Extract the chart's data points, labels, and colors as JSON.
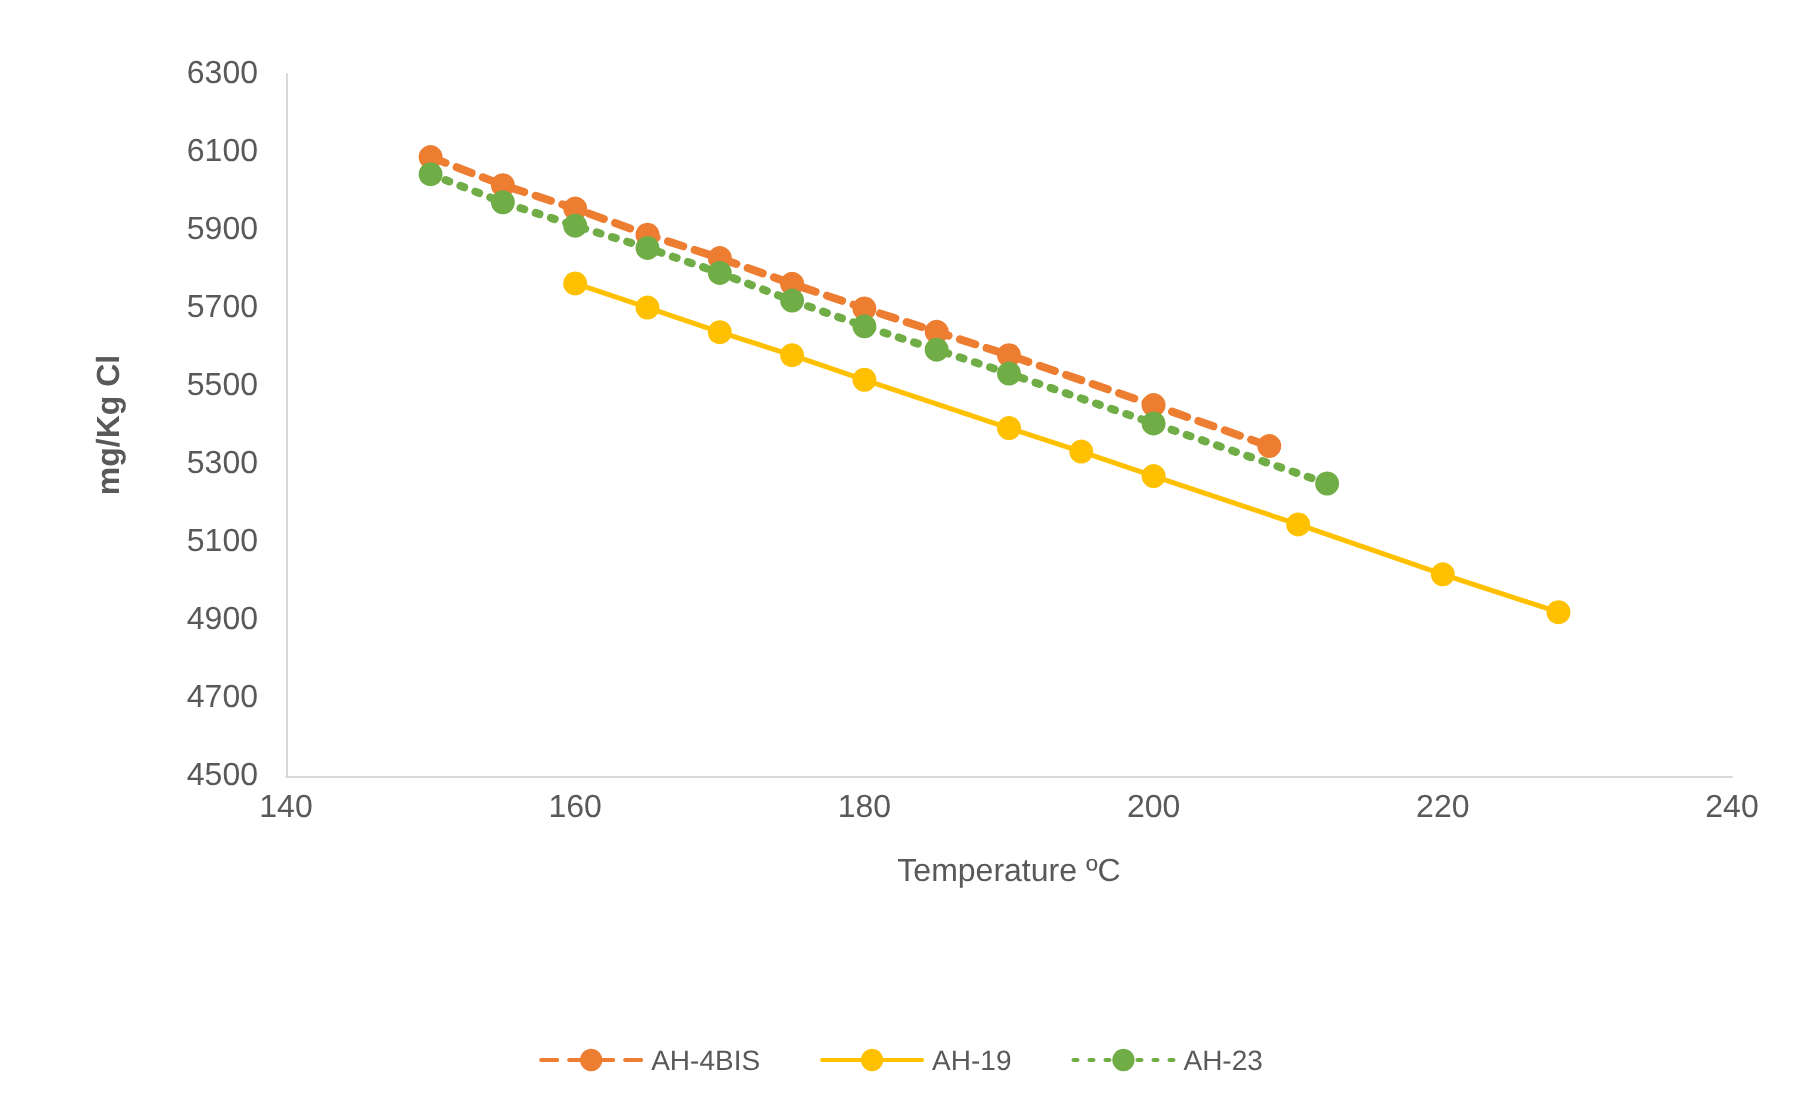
{
  "chart_data": {
    "type": "line",
    "xlabel": "Temperature ºC",
    "ylabel": "mg/Kg Cl",
    "xlim": [
      140,
      240
    ],
    "xticks": [
      140,
      160,
      180,
      200,
      220,
      240
    ],
    "ylim": [
      4500,
      6300
    ],
    "yticks": [
      4500,
      4700,
      4900,
      5100,
      5300,
      5500,
      5700,
      5900,
      6100,
      6300
    ],
    "grid": false,
    "legend": "bottom",
    "marker": "circle",
    "series": [
      {
        "name": "AH-4BIS",
        "color": "#ed7d31",
        "line_style": "dashed",
        "x": [
          150,
          155,
          160,
          165,
          170,
          175,
          180,
          185,
          190,
          200,
          208
        ],
        "values": [
          6087,
          6015,
          5955,
          5888,
          5828,
          5762,
          5699,
          5639,
          5579,
          5451,
          5346
        ]
      },
      {
        "name": "AH-19",
        "color": "#ffc000",
        "line_style": "solid",
        "x": [
          160,
          165,
          170,
          175,
          180,
          190,
          195,
          200,
          210,
          220,
          228
        ],
        "values": [
          5763,
          5701,
          5638,
          5579,
          5516,
          5392,
          5332,
          5269,
          5145,
          5017,
          4920
        ]
      },
      {
        "name": "AH-23",
        "color": "#70ad47",
        "line_style": "dotted",
        "x": [
          150,
          155,
          160,
          165,
          170,
          175,
          180,
          185,
          190,
          200,
          212
        ],
        "values": [
          6043,
          5971,
          5911,
          5854,
          5790,
          5719,
          5653,
          5593,
          5532,
          5404,
          5250
        ]
      }
    ]
  }
}
